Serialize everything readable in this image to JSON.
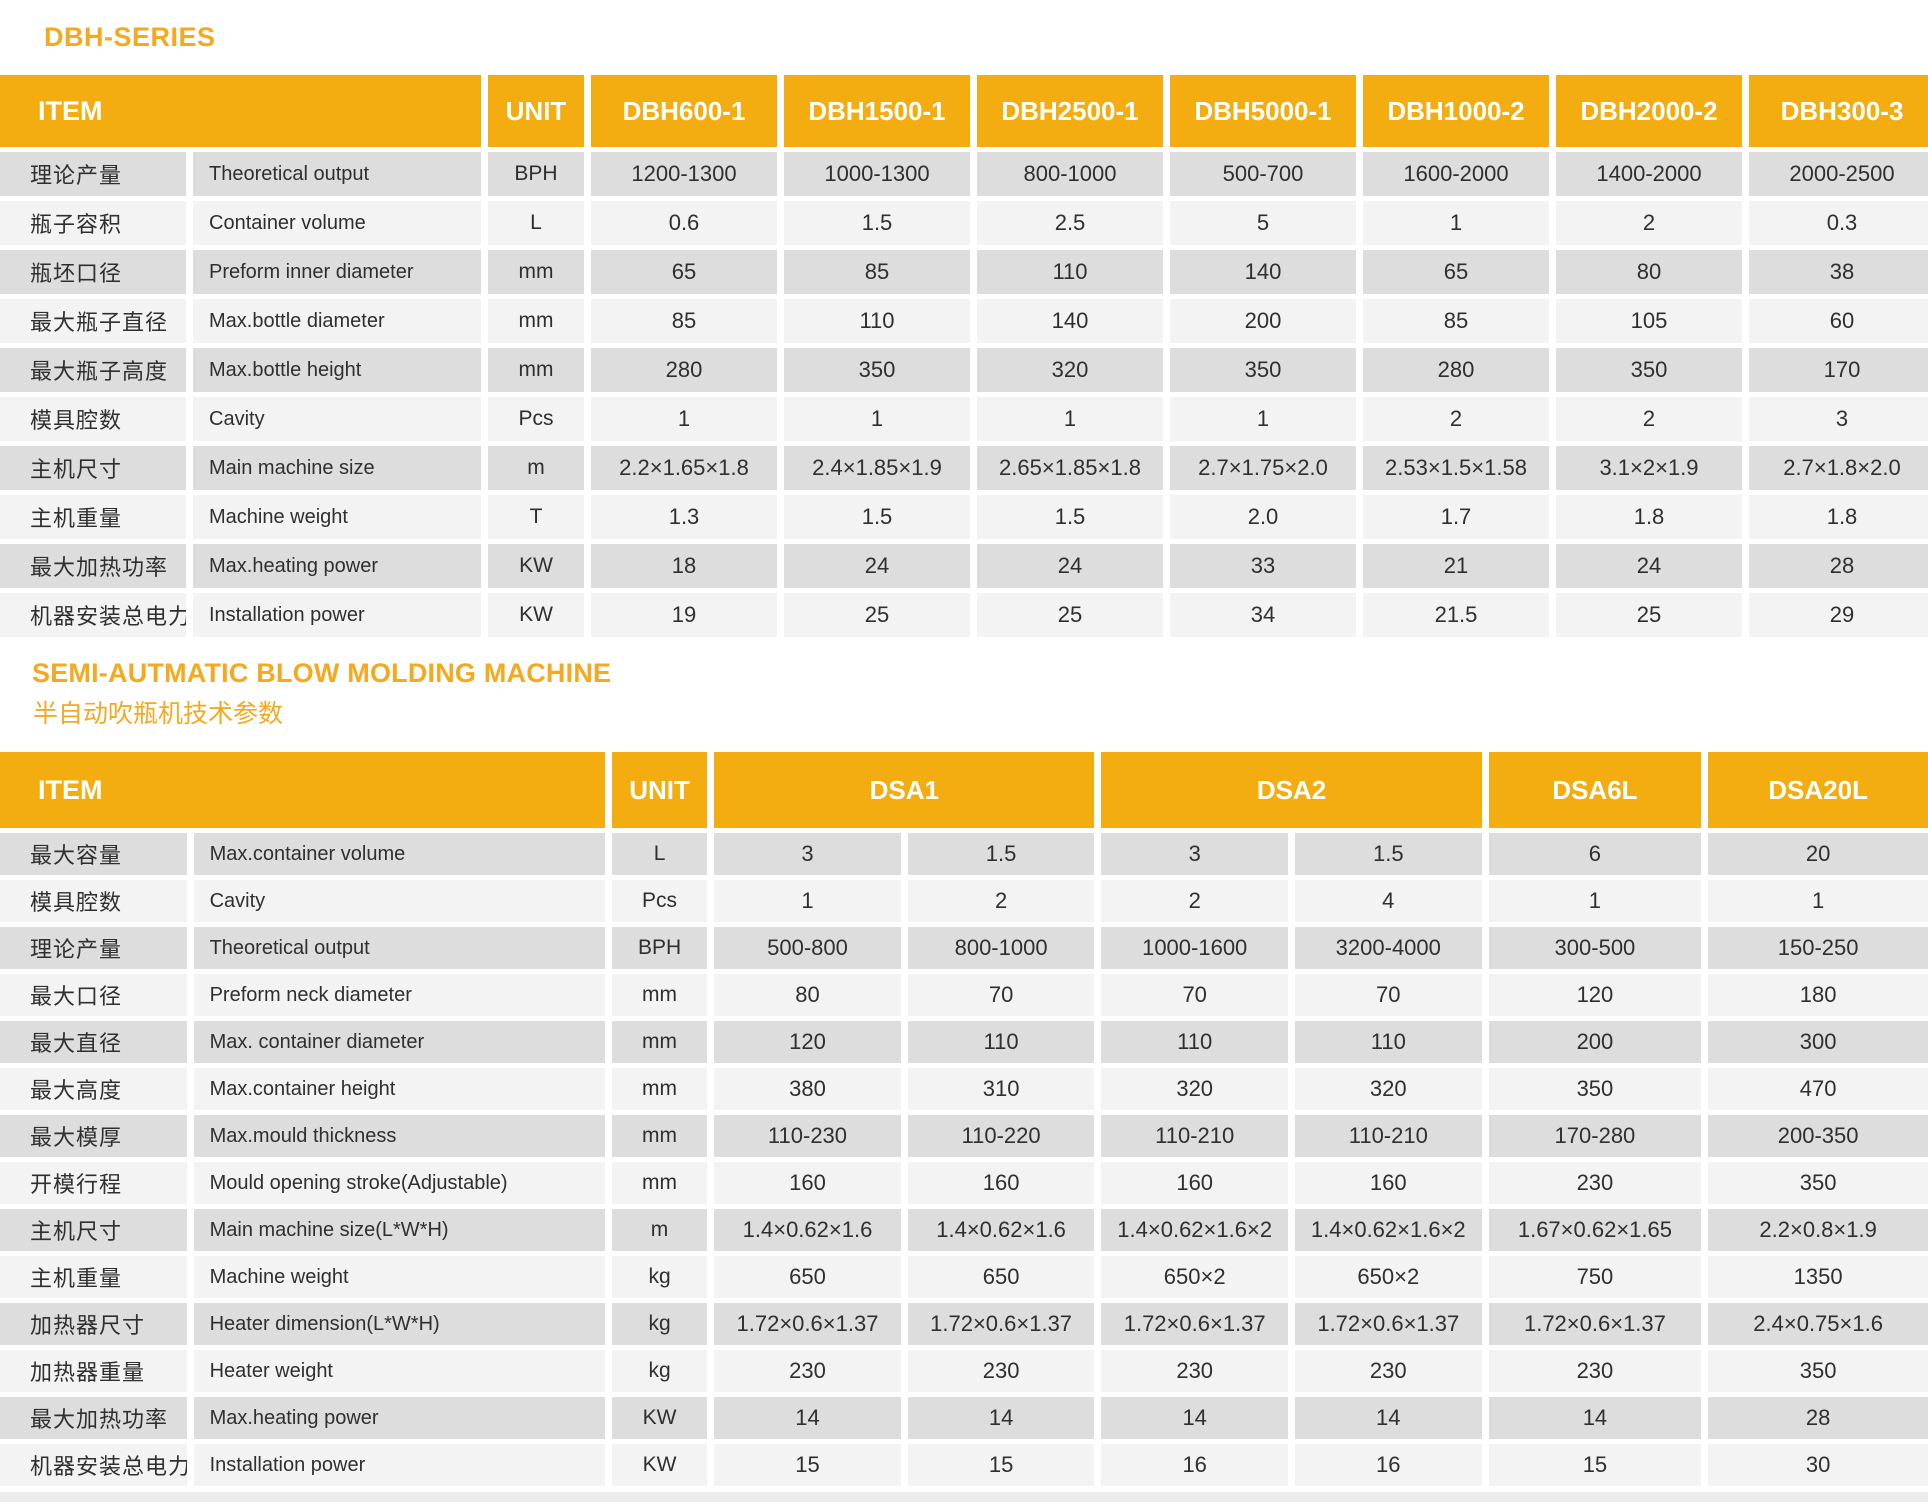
{
  "colors": {
    "accent_header": "#f3ad10",
    "accent_title": "#f6a81f",
    "row_odd": "#dddddd",
    "row_even": "#f3f3f3",
    "text": "#2f2f2f"
  },
  "table1": {
    "title": "DBH-SERIES",
    "headers": {
      "item": "ITEM",
      "unit": "UNIT",
      "models": [
        "DBH600-1",
        "DBH1500-1",
        "DBH2500-1",
        "DBH5000-1",
        "DBH1000-2",
        "DBH2000-2",
        "DBH300-3"
      ]
    },
    "rows": [
      {
        "cn": "理论产量",
        "en": "Theoretical  output",
        "unit": "BPH",
        "values": [
          "1200-1300",
          "1000-1300",
          "800-1000",
          "500-700",
          "1600-2000",
          "1400-2000",
          "2000-2500"
        ]
      },
      {
        "cn": "瓶子容积",
        "en": "Container volume",
        "unit": "L",
        "values": [
          "0.6",
          "1.5",
          "2.5",
          "5",
          "1",
          "2",
          "0.3"
        ]
      },
      {
        "cn": "瓶坯口径",
        "en": "Preform inner diameter",
        "unit": "mm",
        "values": [
          "65",
          "85",
          "110",
          "140",
          "65",
          "80",
          "38"
        ]
      },
      {
        "cn": "最大瓶子直径",
        "en": "Max.bottle diameter",
        "unit": "mm",
        "values": [
          "85",
          "110",
          "140",
          "200",
          "85",
          "105",
          "60"
        ]
      },
      {
        "cn": "最大瓶子高度",
        "en": "Max.bottle height",
        "unit": "mm",
        "values": [
          "280",
          "350",
          "320",
          "350",
          "280",
          "350",
          "170"
        ]
      },
      {
        "cn": "模具腔数",
        "en": "Cavity",
        "unit": "Pcs",
        "values": [
          "1",
          "1",
          "1",
          "1",
          "2",
          "2",
          "3"
        ]
      },
      {
        "cn": "主机尺寸",
        "en": "Main machine size",
        "unit": "m",
        "values": [
          "2.2×1.65×1.8",
          "2.4×1.85×1.9",
          "2.65×1.85×1.8",
          "2.7×1.75×2.0",
          "2.53×1.5×1.58",
          "3.1×2×1.9",
          "2.7×1.8×2.0"
        ]
      },
      {
        "cn": "主机重量",
        "en": "Machine weight",
        "unit": "T",
        "values": [
          "1.3",
          "1.5",
          "1.5",
          "2.0",
          "1.7",
          "1.8",
          "1.8"
        ]
      },
      {
        "cn": "最大加热功率",
        "en": "Max.heating power",
        "unit": "KW",
        "values": [
          "18",
          "24",
          "24",
          "33",
          "21",
          "24",
          "28"
        ]
      },
      {
        "cn": "机器安装总电力",
        "en": "Installation power",
        "unit": "KW",
        "values": [
          "19",
          "25",
          "25",
          "34",
          "21.5",
          "25",
          "29"
        ]
      }
    ]
  },
  "table2": {
    "title_en": "SEMI-AUTMATIC BLOW MOLDING MACHINE",
    "title_cn": "半自动吹瓶机技术参数",
    "headers": {
      "item": "ITEM",
      "unit": "UNIT",
      "groups": [
        {
          "label": "DSA1",
          "span": 2
        },
        {
          "label": "DSA2",
          "span": 2
        },
        {
          "label": "DSA6L",
          "span": 1
        },
        {
          "label": "DSA20L",
          "span": 1
        }
      ]
    },
    "rows": [
      {
        "cn": "最大容量",
        "en": "Max.container volume",
        "unit": "L",
        "values": [
          "3",
          "1.5",
          "3",
          "1.5",
          "6",
          "20"
        ]
      },
      {
        "cn": "模具腔数",
        "en": "Cavity",
        "unit": "Pcs",
        "values": [
          "1",
          "2",
          "2",
          "4",
          "1",
          "1"
        ]
      },
      {
        "cn": "理论产量",
        "en": "Theoretical  output",
        "unit": "BPH",
        "values": [
          "500-800",
          "800-1000",
          "1000-1600",
          "3200-4000",
          "300-500",
          "150-250"
        ]
      },
      {
        "cn": "最大口径",
        "en": "Preform neck diameter",
        "unit": "mm",
        "values": [
          "80",
          "70",
          "70",
          "70",
          "120",
          "180"
        ]
      },
      {
        "cn": "最大直径",
        "en": "Max. container  diameter",
        "unit": "mm",
        "values": [
          "120",
          "110",
          "110",
          "110",
          "200",
          "300"
        ]
      },
      {
        "cn": "最大高度",
        "en": "Max.container height",
        "unit": "mm",
        "values": [
          "380",
          "310",
          "320",
          "320",
          "350",
          "470"
        ]
      },
      {
        "cn": "最大模厚",
        "en": "Max.mould thickness",
        "unit": "mm",
        "values": [
          "110-230",
          "110-220",
          "110-210",
          "110-210",
          "170-280",
          "200-350"
        ]
      },
      {
        "cn": "开模行程",
        "en": "Mould opening stroke(Adjustable)",
        "unit": "mm",
        "values": [
          "160",
          "160",
          "160",
          "160",
          "230",
          "350"
        ]
      },
      {
        "cn": "主机尺寸",
        "en": "Main machine size(L*W*H)",
        "unit": "m",
        "values": [
          "1.4×0.62×1.6",
          "1.4×0.62×1.6",
          "1.4×0.62×1.6×2",
          "1.4×0.62×1.6×2",
          "1.67×0.62×1.65",
          "2.2×0.8×1.9"
        ]
      },
      {
        "cn": "主机重量",
        "en": "Machine weight",
        "unit": "kg",
        "values": [
          "650",
          "650",
          "650×2",
          "650×2",
          "750",
          "1350"
        ]
      },
      {
        "cn": "加热器尺寸",
        "en": "Heater dimension(L*W*H)",
        "unit": "kg",
        "values": [
          "1.72×0.6×1.37",
          "1.72×0.6×1.37",
          "1.72×0.6×1.37",
          "1.72×0.6×1.37",
          "1.72×0.6×1.37",
          "2.4×0.75×1.6"
        ]
      },
      {
        "cn": "加热器重量",
        "en": "Heater weight",
        "unit": "kg",
        "values": [
          "230",
          "230",
          "230",
          "230",
          "230",
          "350"
        ]
      },
      {
        "cn": "最大加热功率",
        "en": "Max.heating power",
        "unit": "KW",
        "values": [
          "14",
          "14",
          "14",
          "14",
          "14",
          "28"
        ]
      },
      {
        "cn": "机器安装总电力",
        "en": "Installation power",
        "unit": "KW",
        "values": [
          "15",
          "15",
          "16",
          "16",
          "15",
          "30"
        ]
      }
    ]
  }
}
